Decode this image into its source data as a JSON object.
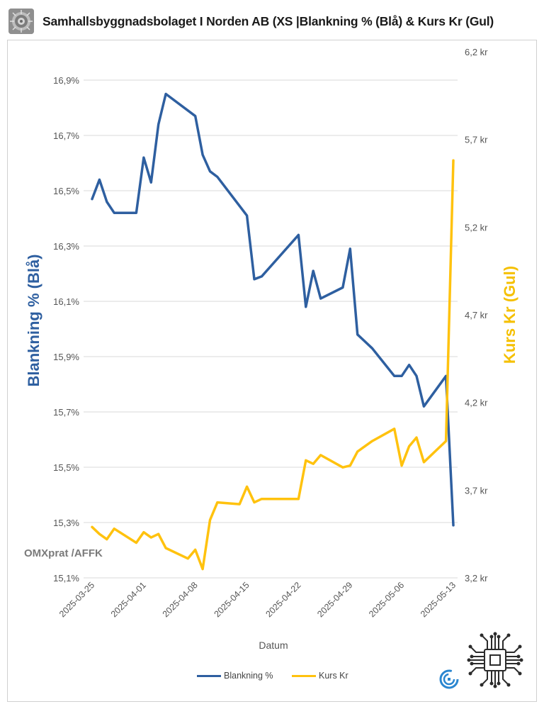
{
  "header": {
    "title": "Samhallsbyggnadsbolaget I Norden AB (XS  |Blankning % (Blå) & Kurs  Kr (Gul)",
    "logo_icon": "gear-texture-logo-icon"
  },
  "watermark": "OMXprat /AFFK",
  "colors": {
    "blue": "#2e5fa0",
    "yellow": "#ffc20e",
    "grid": "#d9d9d9"
  },
  "chart_data": {
    "type": "line",
    "xlabel": "Datum",
    "y_left_label": "Blankning % (Blå)",
    "y_right_label": "Kurs Kr (Gul)",
    "y_left_lim": [
      15.1,
      17.0
    ],
    "y_right_lim": [
      3.2,
      6.2
    ],
    "y_left_ticks": [
      "16,9%",
      "16,7%",
      "16,5%",
      "16,3%",
      "16,1%",
      "15,9%",
      "15,7%",
      "15,5%",
      "15,3%",
      "15,1%"
    ],
    "y_right_ticks": [
      "6,2 kr",
      "5,7 kr",
      "5,2 kr",
      "4,7 kr",
      "4,2 kr",
      "3,7 kr",
      "3,2 kr"
    ],
    "x_ticks": [
      "2025-03-25",
      "2025-04-01",
      "2025-04-08",
      "2025-04-15",
      "2025-04-22",
      "2025-04-29",
      "2025-05-06",
      "2025-05-13"
    ],
    "grid": true,
    "legend_position": "bottom",
    "series": [
      {
        "name": "Blankning %",
        "axis": "left",
        "x": [
          "2025-03-25",
          "2025-03-26",
          "2025-03-27",
          "2025-03-28",
          "2025-03-31",
          "2025-04-01",
          "2025-04-02",
          "2025-04-03",
          "2025-04-04",
          "2025-04-08",
          "2025-04-09",
          "2025-04-10",
          "2025-04-11",
          "2025-04-15",
          "2025-04-16",
          "2025-04-17",
          "2025-04-22",
          "2025-04-23",
          "2025-04-24",
          "2025-04-25",
          "2025-04-28",
          "2025-04-29",
          "2025-04-30",
          "2025-05-02",
          "2025-05-05",
          "2025-05-06",
          "2025-05-07",
          "2025-05-08",
          "2025-05-09",
          "2025-05-12",
          "2025-05-13"
        ],
        "values": [
          16.47,
          16.54,
          16.46,
          16.42,
          16.42,
          16.62,
          16.53,
          16.74,
          16.85,
          16.77,
          16.63,
          16.57,
          16.55,
          16.41,
          16.18,
          16.19,
          16.34,
          16.08,
          16.21,
          16.11,
          16.15,
          16.29,
          15.98,
          15.93,
          15.83,
          15.83,
          15.87,
          15.83,
          15.72,
          15.83,
          15.29
        ]
      },
      {
        "name": "Kurs Kr",
        "axis": "right",
        "x": [
          "2025-03-25",
          "2025-03-26",
          "2025-03-27",
          "2025-03-28",
          "2025-03-31",
          "2025-04-01",
          "2025-04-02",
          "2025-04-03",
          "2025-04-04",
          "2025-04-07",
          "2025-04-08",
          "2025-04-09",
          "2025-04-10",
          "2025-04-11",
          "2025-04-14",
          "2025-04-15",
          "2025-04-16",
          "2025-04-17",
          "2025-04-22",
          "2025-04-23",
          "2025-04-24",
          "2025-04-25",
          "2025-04-28",
          "2025-04-29",
          "2025-04-30",
          "2025-05-02",
          "2025-05-05",
          "2025-05-06",
          "2025-05-07",
          "2025-05-08",
          "2025-05-09",
          "2025-05-12",
          "2025-05-13"
        ],
        "values": [
          3.49,
          3.45,
          3.42,
          3.48,
          3.4,
          3.46,
          3.43,
          3.45,
          3.37,
          3.31,
          3.36,
          3.25,
          3.53,
          3.63,
          3.62,
          3.72,
          3.63,
          3.65,
          3.65,
          3.87,
          3.85,
          3.9,
          3.83,
          3.84,
          3.92,
          3.98,
          4.05,
          3.84,
          3.95,
          4.0,
          3.86,
          3.98,
          5.58
        ]
      }
    ]
  }
}
